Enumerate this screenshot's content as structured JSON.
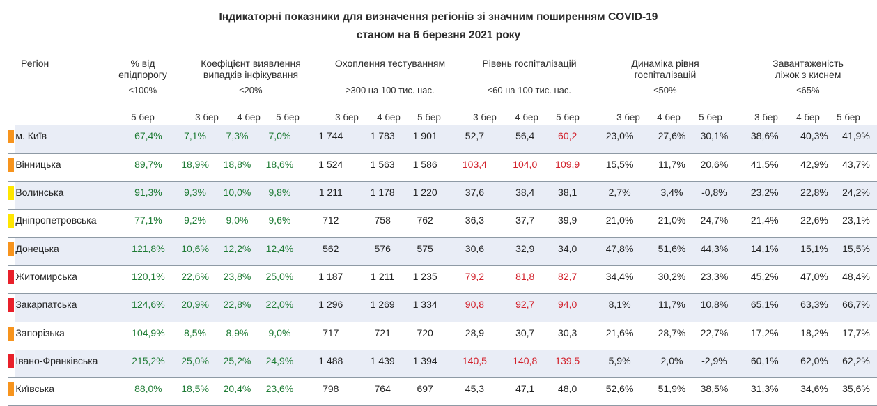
{
  "title": {
    "line1": "Індикаторні показники для визначення регіонів зі значним поширенням COVID-19",
    "line2": "станом на 6 березня 2021 року"
  },
  "headers": {
    "region": "Регіон",
    "epi": {
      "l1": "% від",
      "l2": "епідпорогу",
      "threshold": "≤100%"
    },
    "detect": {
      "l1": "Коефіцієнт виявлення",
      "l2": "випадків інфікування",
      "threshold": "≤20%"
    },
    "testing": {
      "l1": "Охоплення тестуванням",
      "threshold": "≥300 на 100 тис. нас."
    },
    "hosp": {
      "l1": "Рівень госпіталізацій",
      "threshold": "≤60 на 100 тис. нас."
    },
    "dyn": {
      "l1": "Динаміка рівня",
      "l2": "госпіталізацій",
      "threshold": "≤50%"
    },
    "oxygen": {
      "l1": "Завантаженість",
      "l2": "ліжок з киснем",
      "threshold": "≤65%"
    }
  },
  "days": {
    "d3": "3 бер",
    "d4": "4 бер",
    "d5": "5 бер"
  },
  "colors": {
    "orange": "#f7941d",
    "yellow": "#ffe600",
    "red": "#e8202a",
    "green": "#1e7b34",
    "rednum": "#d2202a"
  },
  "rows": [
    {
      "name": "м. Київ",
      "marker": "orange",
      "epi": "67,4%",
      "det": [
        "7,1%",
        "7,3%",
        "7,0%"
      ],
      "test": [
        "1 744",
        "1 783",
        "1 901"
      ],
      "hosp": [
        "52,7",
        "56,4",
        "60,2"
      ],
      "hospc": [
        "k",
        "k",
        "r"
      ],
      "dyn": [
        "23,0%",
        "27,6%",
        "30,1%"
      ],
      "oxy": [
        "38,6%",
        "40,3%",
        "41,9%"
      ]
    },
    {
      "name": "Вінницька",
      "marker": "orange",
      "epi": "89,7%",
      "det": [
        "18,9%",
        "18,8%",
        "18,6%"
      ],
      "test": [
        "1 524",
        "1 563",
        "1 586"
      ],
      "hosp": [
        "103,4",
        "104,0",
        "109,9"
      ],
      "hospc": [
        "r",
        "r",
        "r"
      ],
      "dyn": [
        "15,5%",
        "11,7%",
        "20,6%"
      ],
      "oxy": [
        "41,5%",
        "42,9%",
        "43,7%"
      ]
    },
    {
      "name": "Волинська",
      "marker": "yellow",
      "epi": "91,3%",
      "det": [
        "9,3%",
        "10,0%",
        "9,8%"
      ],
      "test": [
        "1 211",
        "1 178",
        "1 220"
      ],
      "hosp": [
        "37,6",
        "38,4",
        "38,1"
      ],
      "hospc": [
        "k",
        "k",
        "k"
      ],
      "dyn": [
        "2,7%",
        "3,4%",
        "-0,8%"
      ],
      "oxy": [
        "23,2%",
        "22,8%",
        "24,2%"
      ]
    },
    {
      "name": "Дніпропетровська",
      "marker": "yellow",
      "epi": "77,1%",
      "det": [
        "9,2%",
        "9,0%",
        "9,6%"
      ],
      "test": [
        "712",
        "758",
        "762"
      ],
      "hosp": [
        "36,3",
        "37,7",
        "39,9"
      ],
      "hospc": [
        "k",
        "k",
        "k"
      ],
      "dyn": [
        "21,0%",
        "21,0%",
        "24,7%"
      ],
      "oxy": [
        "21,4%",
        "22,6%",
        "23,1%"
      ]
    },
    {
      "name": "Донецька",
      "marker": "orange",
      "epi": "121,8%",
      "det": [
        "10,6%",
        "12,2%",
        "12,4%"
      ],
      "test": [
        "562",
        "576",
        "575"
      ],
      "hosp": [
        "30,6",
        "32,9",
        "34,0"
      ],
      "hospc": [
        "k",
        "k",
        "k"
      ],
      "dyn": [
        "47,8%",
        "51,6%",
        "44,3%"
      ],
      "oxy": [
        "14,1%",
        "15,1%",
        "15,5%"
      ]
    },
    {
      "name": "Житомирська",
      "marker": "red",
      "epi": "120,1%",
      "det": [
        "22,6%",
        "23,8%",
        "25,0%"
      ],
      "test": [
        "1 187",
        "1 211",
        "1 235"
      ],
      "hosp": [
        "79,2",
        "81,8",
        "82,7"
      ],
      "hospc": [
        "r",
        "r",
        "r"
      ],
      "dyn": [
        "34,4%",
        "30,2%",
        "23,3%"
      ],
      "oxy": [
        "45,2%",
        "47,0%",
        "48,4%"
      ]
    },
    {
      "name": "Закарпатська",
      "marker": "red",
      "epi": "124,6%",
      "det": [
        "20,9%",
        "22,8%",
        "22,0%"
      ],
      "test": [
        "1 296",
        "1 269",
        "1 334"
      ],
      "hosp": [
        "90,8",
        "92,7",
        "94,0"
      ],
      "hospc": [
        "r",
        "r",
        "r"
      ],
      "dyn": [
        "8,1%",
        "11,7%",
        "10,8%"
      ],
      "oxy": [
        "65,1%",
        "63,3%",
        "66,7%"
      ]
    },
    {
      "name": "Запорізька",
      "marker": "orange",
      "epi": "104,9%",
      "det": [
        "8,5%",
        "8,9%",
        "9,0%"
      ],
      "test": [
        "717",
        "721",
        "720"
      ],
      "hosp": [
        "28,9",
        "30,7",
        "30,3"
      ],
      "hospc": [
        "k",
        "k",
        "k"
      ],
      "dyn": [
        "21,6%",
        "28,7%",
        "22,7%"
      ],
      "oxy": [
        "17,2%",
        "18,2%",
        "17,7%"
      ]
    },
    {
      "name": "Івано-Франківська",
      "marker": "red",
      "epi": "215,2%",
      "det": [
        "25,0%",
        "25,2%",
        "24,9%"
      ],
      "test": [
        "1 488",
        "1 439",
        "1 394"
      ],
      "hosp": [
        "140,5",
        "140,8",
        "139,5"
      ],
      "hospc": [
        "r",
        "r",
        "r"
      ],
      "dyn": [
        "5,9%",
        "2,0%",
        "-2,9%"
      ],
      "oxy": [
        "60,1%",
        "62,0%",
        "62,2%"
      ]
    },
    {
      "name": "Київська",
      "marker": "orange",
      "epi": "88,0%",
      "det": [
        "18,5%",
        "20,4%",
        "23,6%"
      ],
      "test": [
        "798",
        "764",
        "697"
      ],
      "hosp": [
        "45,3",
        "47,1",
        "48,0"
      ],
      "hospc": [
        "k",
        "k",
        "k"
      ],
      "dyn": [
        "52,6%",
        "51,9%",
        "38,5%"
      ],
      "oxy": [
        "31,3%",
        "34,6%",
        "35,6%"
      ]
    }
  ]
}
